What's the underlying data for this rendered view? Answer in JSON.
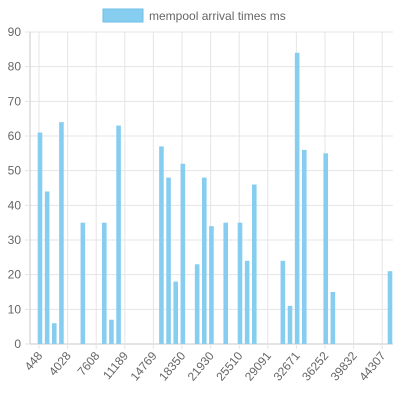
{
  "colors": {
    "bar_fill": "#87cdf0",
    "bar_stroke": "#6fbfe8",
    "grid": "#e5e5e5",
    "axis": "#c8c8c8",
    "text": "#666666"
  },
  "legend": {
    "label": "mempool arrival times ms"
  },
  "chart_data": {
    "type": "bar",
    "title": "",
    "xlabel": "",
    "ylabel": "",
    "ylim": [
      0,
      90
    ],
    "yticks": [
      0,
      10,
      20,
      30,
      40,
      50,
      60,
      70,
      80,
      90
    ],
    "grid": true,
    "legend_position": "top-center",
    "x_tick_labels": [
      "448",
      "4028",
      "7608",
      "11189",
      "14769",
      "18350",
      "21930",
      "25510",
      "29091",
      "32671",
      "36252",
      "39832",
      "44307"
    ],
    "series": [
      {
        "name": "mempool arrival times ms",
        "values": [
          61,
          44,
          6,
          64,
          0,
          0,
          35,
          0,
          0,
          35,
          7,
          63,
          0,
          0,
          0,
          0,
          0,
          57,
          48,
          18,
          52,
          0,
          23,
          48,
          34,
          0,
          35,
          0,
          35,
          24,
          46,
          0,
          0,
          0,
          24,
          11,
          84,
          56,
          0,
          0,
          55,
          15,
          0,
          0,
          0,
          0,
          0,
          0,
          0,
          21
        ]
      }
    ]
  }
}
